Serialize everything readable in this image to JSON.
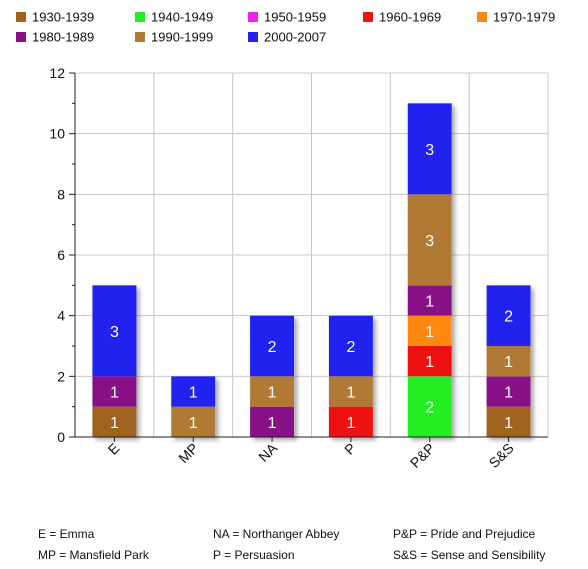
{
  "chart_data": {
    "type": "bar",
    "stacked": true,
    "categories": [
      "E",
      "MP",
      "NA",
      "P",
      "P&P",
      "S&S"
    ],
    "series": [
      {
        "name": "1930-1939",
        "color": "#A0631E",
        "values": [
          1,
          0,
          0,
          0,
          0,
          1
        ]
      },
      {
        "name": "1940-1949",
        "color": "#22EE22",
        "values": [
          0,
          0,
          0,
          0,
          2,
          0
        ]
      },
      {
        "name": "1950-1959",
        "color": "#EE22EE",
        "values": [
          0,
          0,
          0,
          0,
          0,
          0
        ]
      },
      {
        "name": "1960-1969",
        "color": "#EE1111",
        "values": [
          0,
          0,
          0,
          1,
          1,
          0
        ]
      },
      {
        "name": "1970-1979",
        "color": "#FF8811",
        "values": [
          0,
          0,
          0,
          0,
          1,
          0
        ]
      },
      {
        "name": "1980-1989",
        "color": "#881188",
        "values": [
          1,
          0,
          1,
          0,
          1,
          1
        ]
      },
      {
        "name": "1990-1999",
        "color": "#B07A35",
        "values": [
          0,
          1,
          1,
          1,
          3,
          1
        ]
      },
      {
        "name": "2000-2007",
        "color": "#2222EE",
        "values": [
          3,
          1,
          2,
          2,
          3,
          2
        ]
      }
    ],
    "ylim": [
      0,
      12
    ],
    "yticks": [
      "0",
      "2",
      "4",
      "6",
      "8",
      "10",
      "12"
    ],
    "grid": true,
    "legend_position": "top"
  },
  "footnotes": [
    "E = Emma",
    "MP = Mansfield Park",
    "NA = Northanger Abbey",
    "P = Persuasion",
    "P&P = Pride and Prejudice",
    "S&S = Sense and Sensibility"
  ]
}
